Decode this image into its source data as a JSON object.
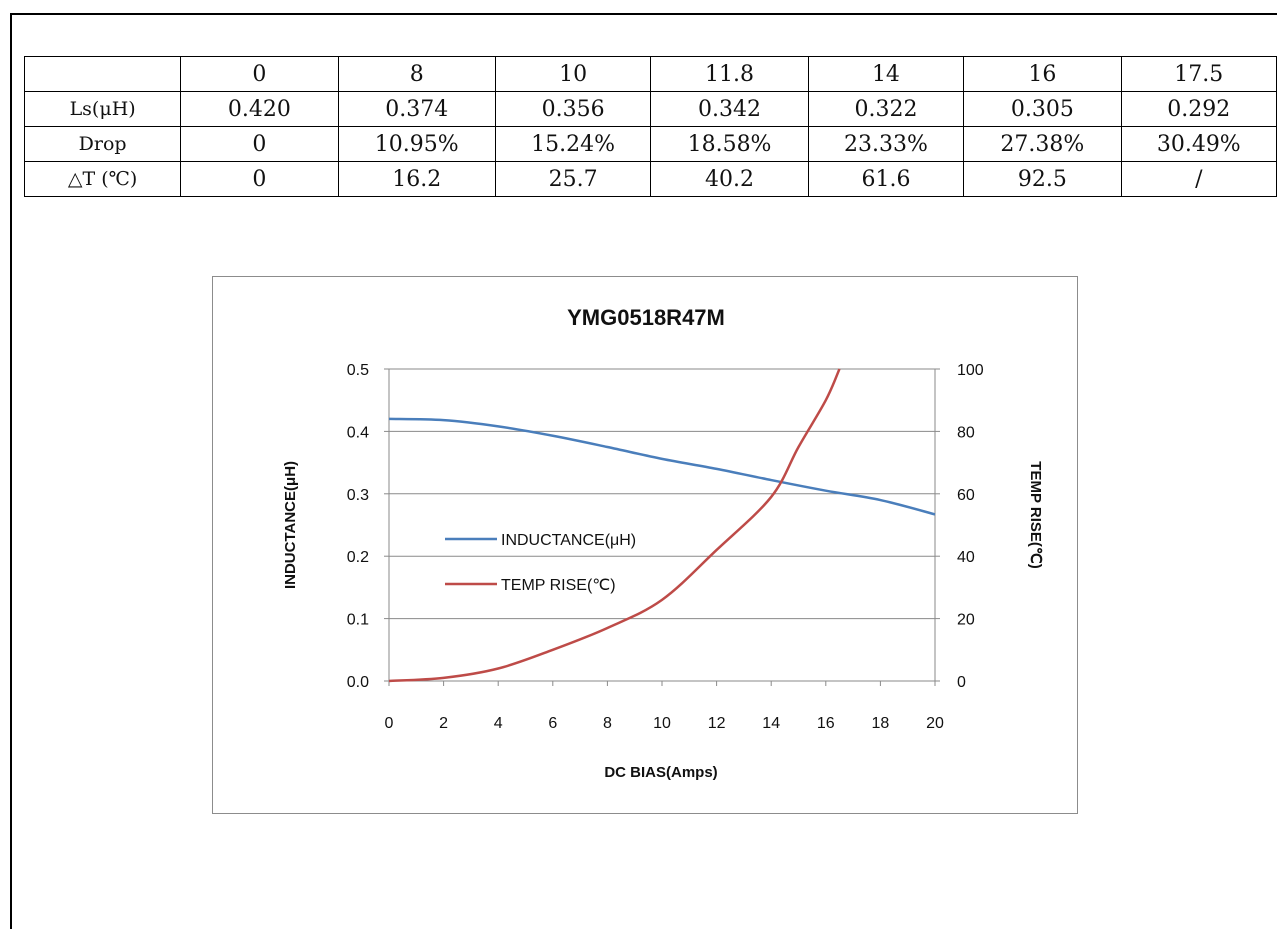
{
  "table": {
    "header": [
      "",
      "0",
      "8",
      "10",
      "11.8",
      "14",
      "16",
      "17.5"
    ],
    "rows": [
      {
        "label": "Ls(μH)",
        "cells": [
          "0.420",
          "0.374",
          "0.356",
          "0.342",
          "0.322",
          "0.305",
          "0.292"
        ]
      },
      {
        "label": "Drop",
        "cells": [
          "0",
          "10.95%",
          "15.24%",
          "18.58%",
          "23.33%",
          "27.38%",
          "30.49%"
        ]
      },
      {
        "label": "△T (℃)",
        "cells": [
          "0",
          "16.2",
          "25.7",
          "40.2",
          "61.6",
          "92.5",
          "/"
        ]
      }
    ]
  },
  "chart_data": {
    "type": "line",
    "title": "YMG0518R47M",
    "xlabel": "DC BIAS(Amps)",
    "ylabel": "INDUCTANCE(μH)",
    "y2label": "TEMP RISE(℃)",
    "xlim": [
      0,
      20
    ],
    "ylim": [
      0,
      0.5
    ],
    "y2lim": [
      0,
      100
    ],
    "xticks": [
      "0",
      "2",
      "4",
      "6",
      "8",
      "10",
      "12",
      "14",
      "16",
      "18",
      "20"
    ],
    "yticks": [
      "0.0",
      "0.1",
      "0.2",
      "0.3",
      "0.4",
      "0.5"
    ],
    "y2ticks": [
      "0",
      "20",
      "40",
      "60",
      "80",
      "100"
    ],
    "grid": true,
    "legend_position": "center-left",
    "series": [
      {
        "name": "INDUCTANCE(μH)",
        "axis": "left",
        "color": "#4a7ebb",
        "x": [
          0,
          2,
          4,
          6,
          8,
          10,
          12,
          14,
          16,
          18,
          20
        ],
        "y": [
          0.42,
          0.418,
          0.408,
          0.393,
          0.375,
          0.356,
          0.34,
          0.322,
          0.305,
          0.29,
          0.267
        ]
      },
      {
        "name": "TEMP RISE(℃)",
        "axis": "right",
        "color": "#be4b48",
        "x": [
          0,
          2,
          4,
          6,
          8,
          10,
          12,
          14,
          15,
          16,
          16.5
        ],
        "y": [
          0,
          1,
          4,
          10,
          17,
          26,
          42,
          59,
          75,
          90,
          100
        ]
      }
    ]
  }
}
